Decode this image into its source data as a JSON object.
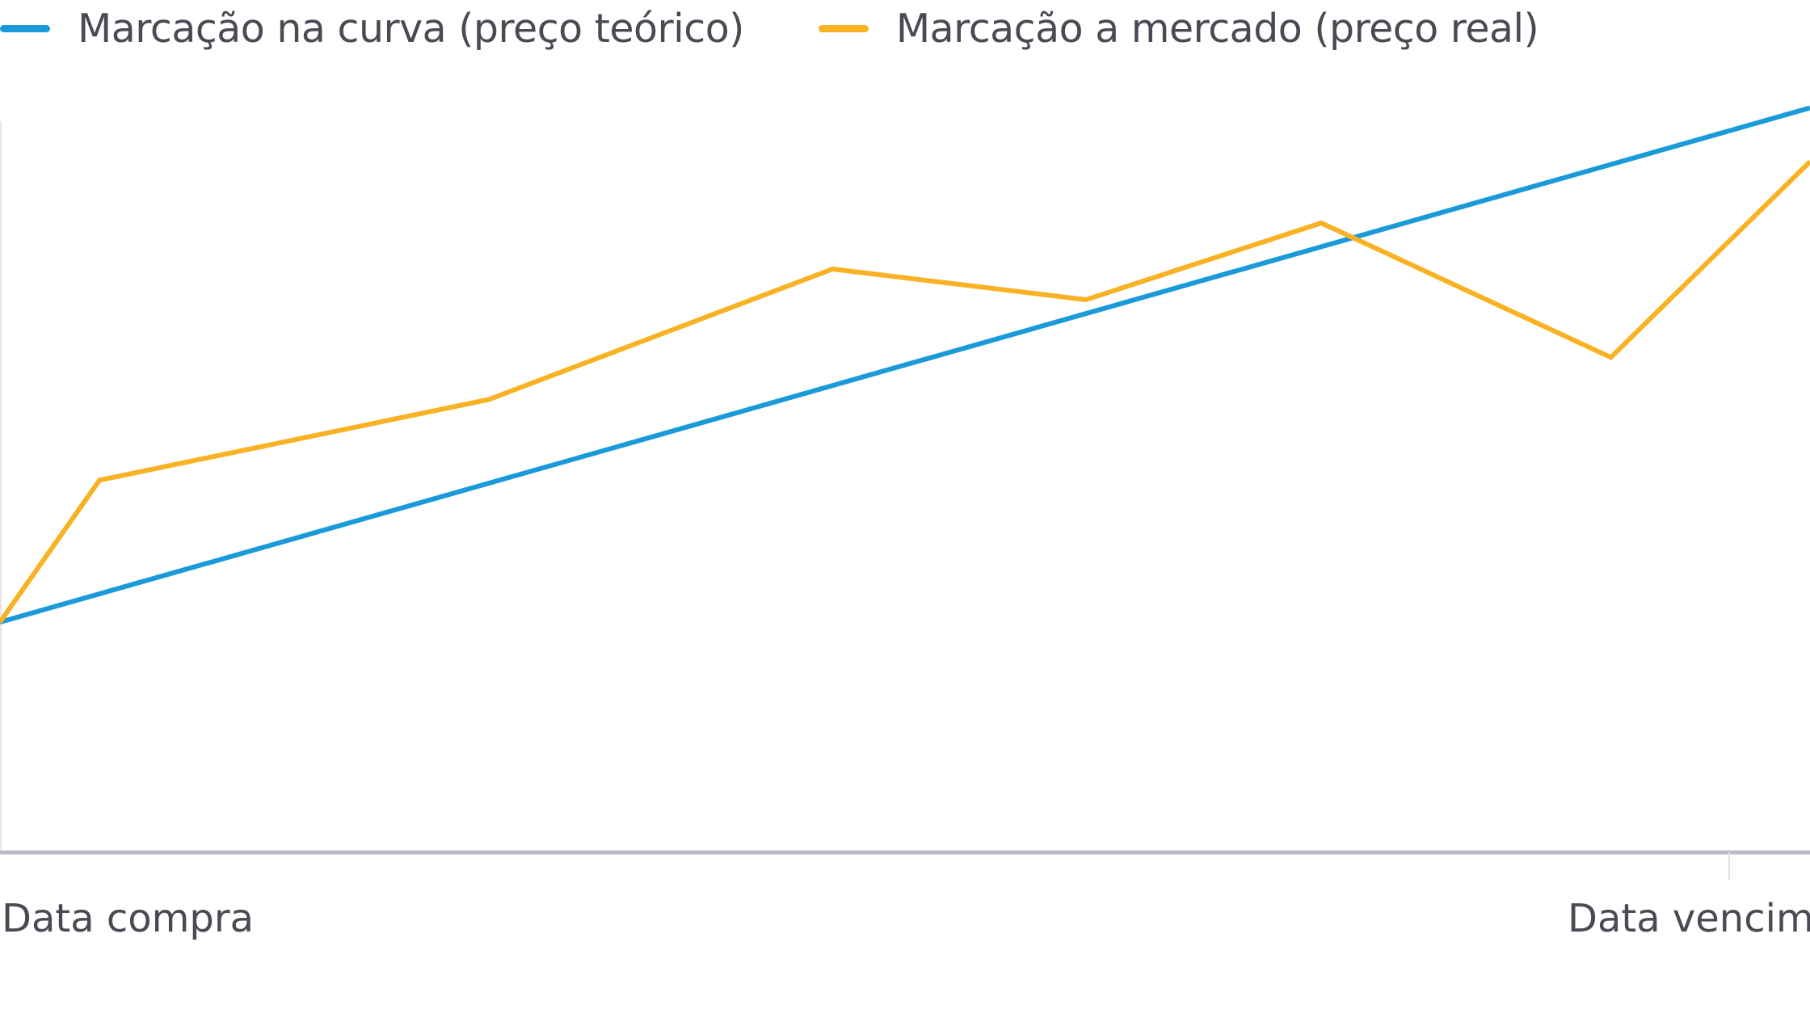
{
  "chart_data": {
    "type": "line",
    "title": "",
    "xlabel": "",
    "ylabel": "",
    "grid": false,
    "legend_position": "top-left",
    "x_tick_labels": [
      {
        "x": 0,
        "label": "Data compra"
      },
      {
        "x": 1,
        "label": "Data vencimento"
      }
    ],
    "xlim": [
      0,
      1
    ],
    "ylim": [
      0,
      1
    ],
    "series": [
      {
        "name": "Marcação na curva (preço teórico)",
        "color": "#1a9ad9",
        "points": [
          [
            0,
            0.3
          ],
          [
            1,
            0.97
          ]
        ]
      },
      {
        "name": "Marcação a mercado (preço real)",
        "color": "#f8b224",
        "points": [
          [
            0,
            0.3
          ],
          [
            0.055,
            0.485
          ],
          [
            0.27,
            0.59
          ],
          [
            0.46,
            0.76
          ],
          [
            0.6,
            0.72
          ],
          [
            0.73,
            0.82
          ],
          [
            0.89,
            0.645
          ],
          [
            1,
            0.9
          ]
        ]
      }
    ]
  }
}
